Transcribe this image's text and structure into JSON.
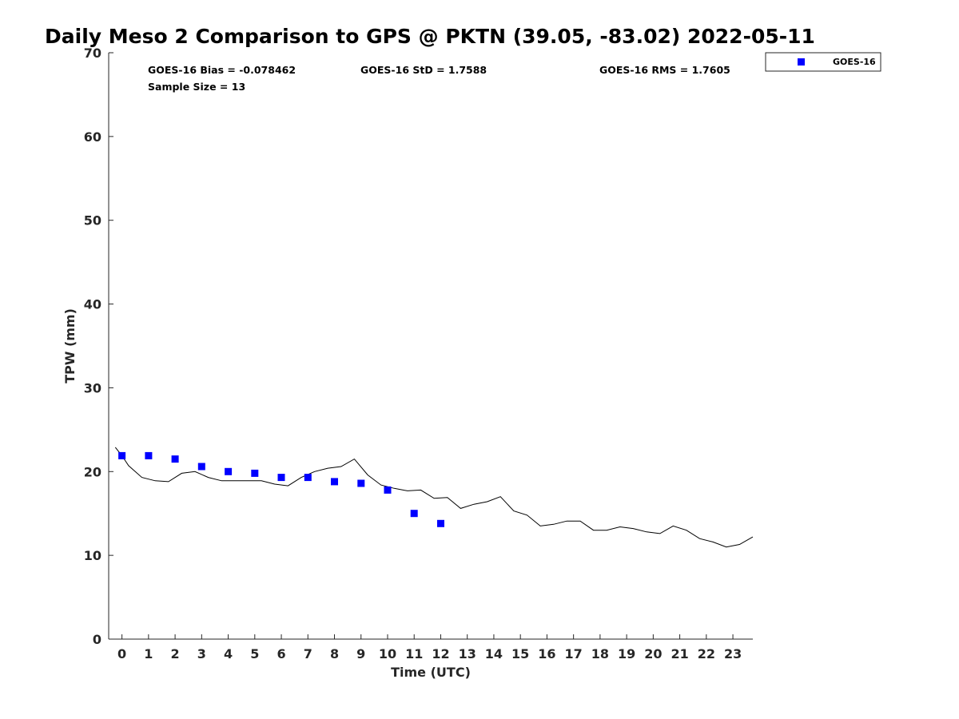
{
  "chart_data": {
    "type": "scatter",
    "title": "Daily Meso 2 Comparison to GPS @ PKTN (39.05, -83.02) 2022-05-11",
    "xlabel": "Time (UTC)",
    "ylabel": "TPW (mm)",
    "xlim": [
      -0.5,
      23.75
    ],
    "ylim": [
      0,
      70
    ],
    "x_ticks": [
      0,
      1,
      2,
      3,
      4,
      5,
      6,
      7,
      8,
      9,
      10,
      11,
      12,
      13,
      14,
      15,
      16,
      17,
      18,
      19,
      20,
      21,
      22,
      23
    ],
    "y_ticks": [
      0,
      10,
      20,
      30,
      40,
      50,
      60,
      70
    ],
    "grid": false,
    "legend_position": "top-right",
    "stats": {
      "bias": "GOES-16 Bias = -0.078462",
      "std": "GOES-16 StD = 1.7588",
      "rms": "GOES-16 RMS = 1.7605",
      "sample": "Sample Size = 13"
    },
    "series": [
      {
        "name": "GOES-16",
        "kind": "scatter",
        "marker": "square",
        "color": "#0000ff",
        "x": [
          0,
          1,
          2,
          3,
          4,
          5,
          6,
          7,
          8,
          9,
          10,
          11,
          12
        ],
        "y": [
          21.9,
          21.9,
          21.5,
          20.6,
          20.0,
          19.8,
          19.3,
          19.3,
          18.8,
          18.6,
          17.8,
          15.0,
          13.8
        ]
      },
      {
        "kind": "line",
        "color": "#000000",
        "x": [
          -0.25,
          0.0,
          0.25,
          0.75,
          1.25,
          1.75,
          2.25,
          2.75,
          3.25,
          3.75,
          4.25,
          4.75,
          5.25,
          5.75,
          6.25,
          6.75,
          7.25,
          7.75,
          8.25,
          8.75,
          9.25,
          9.75,
          10.25,
          10.75,
          11.25,
          11.75,
          12.25,
          12.75,
          13.25,
          13.75,
          14.25,
          14.75,
          15.25,
          15.75,
          16.25,
          16.75,
          17.25,
          17.75,
          18.25,
          18.75,
          19.25,
          19.75,
          20.25,
          20.75,
          21.25,
          21.75,
          22.25,
          22.75,
          23.25,
          23.75
        ],
        "y": [
          22.9,
          21.9,
          20.7,
          19.3,
          18.9,
          18.8,
          19.8,
          20.0,
          19.3,
          18.9,
          18.9,
          18.9,
          18.9,
          18.5,
          18.3,
          19.3,
          20.0,
          20.4,
          20.6,
          21.5,
          19.6,
          18.4,
          18.0,
          17.7,
          17.8,
          16.8,
          16.9,
          15.6,
          16.1,
          16.4,
          17.0,
          15.3,
          14.8,
          13.5,
          13.7,
          14.1,
          14.1,
          13.0,
          13.0,
          13.4,
          13.2,
          12.8,
          12.6,
          13.5,
          13.0,
          12.0,
          11.6,
          11.0,
          11.3,
          12.2
        ]
      }
    ]
  }
}
